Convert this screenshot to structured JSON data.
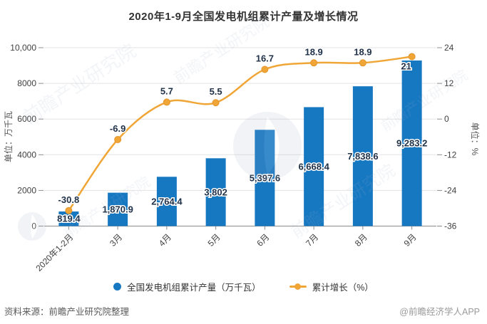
{
  "title": "2020年1-9月全国发电机组累计产量及增长情况",
  "chart_data": {
    "type": "bar+line",
    "categories": [
      "2020年1-2月",
      "3月",
      "4月",
      "5月",
      "6月",
      "7月",
      "8月",
      "9月"
    ],
    "series": [
      {
        "name": "全国发电机组累计产量（万千瓦）",
        "type": "bar",
        "axis": "left",
        "values": [
          819.4,
          1870.9,
          2764.4,
          3802,
          5397.6,
          6668.4,
          7838.6,
          9283.2
        ],
        "labels": [
          "819.4",
          "1,870.9",
          "2,764.4",
          "3,802",
          "5,397.6",
          "6,668.4",
          "7,838.6",
          "9,283.2"
        ]
      },
      {
        "name": "累计增长（%）",
        "type": "line",
        "axis": "right",
        "values": [
          -30.8,
          -6.9,
          5.7,
          5.5,
          16.7,
          18.9,
          18.9,
          21
        ],
        "labels": [
          "-30.8",
          "-6.9",
          "5.7",
          "5.5",
          "16.7",
          "18.9",
          "18.9",
          "21"
        ]
      }
    ],
    "left_axis": {
      "label": "单位：万千瓦",
      "min": 0,
      "max": 10000,
      "ticks": [
        "0",
        "2000",
        "4000",
        "6000",
        "8000",
        "10,000"
      ]
    },
    "right_axis": {
      "label": "单位：%",
      "min": -36,
      "max": 24,
      "ticks": [
        "-36",
        "-24",
        "-12",
        "0",
        "12",
        "24"
      ]
    },
    "grid": true,
    "legend_position": "bottom",
    "smooth_line": true
  },
  "legend": {
    "items": [
      {
        "label": "全国发电机组累计产量（万千瓦）",
        "marker": "circle"
      },
      {
        "label": "累计增长（%）",
        "marker": "line-dot"
      }
    ]
  },
  "footer": {
    "source": "资料来源：前瞻产业研究院整理",
    "branding": "@前瞻经济学人APP"
  },
  "watermark": {
    "text": "前瞻产业研究院",
    "logo": "qianzhan-logo"
  },
  "colors": {
    "bar": "#1778c2",
    "line": "#f0a636",
    "point_edge": "#e2952b",
    "data_label": "#20324a",
    "axis_text": "#404040",
    "unit_text": "#555555",
    "grid": "#e3e3e3",
    "axis_line": "#8c8c8c",
    "title": "#333333",
    "watermark": "#9fb2c3"
  }
}
